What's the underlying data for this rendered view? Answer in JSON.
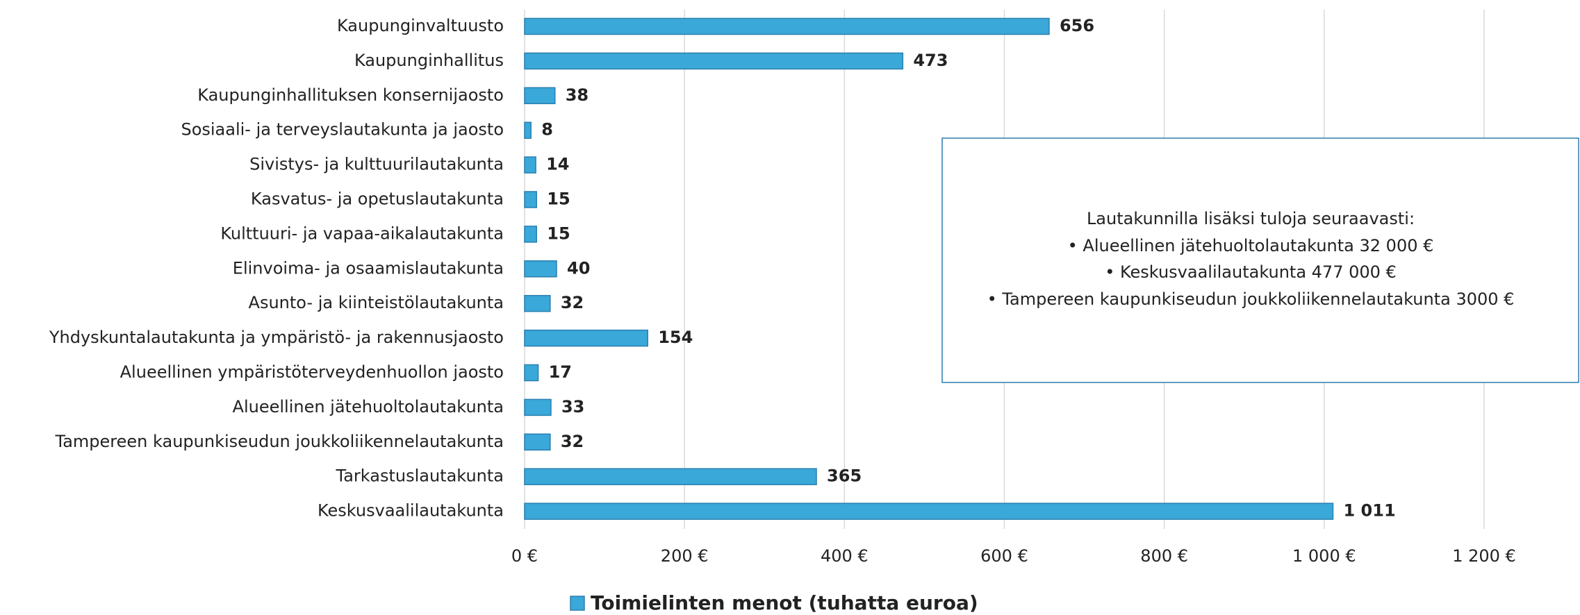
{
  "chart_data": {
    "type": "bar",
    "orientation": "horizontal",
    "categories": [
      "Kaupunginvaltuusto",
      "Kaupunginhallitus",
      "Kaupunginhallituksen konsernijaosto",
      "Sosiaali- ja terveyslautakunta ja jaosto",
      "Sivistys- ja kulttuurilautakunta",
      "Kasvatus- ja opetuslautakunta",
      "Kulttuuri- ja vapaa-aikalautakunta",
      "Elinvoima- ja osaamislautakunta",
      "Asunto- ja kiinteistölautakunta",
      "Yhdyskuntalautakunta ja ympäristö- ja rakennusjaosto",
      "Alueellinen ympäristöterveydenhuollon jaosto",
      "Alueellinen jätehuoltolautakunta",
      "Tampereen kaupunkiseudun joukkoliikennelautakunta",
      "Tarkastuslautakunta",
      "Keskusvaalilautakunta"
    ],
    "series": [
      {
        "name": "Toimielinten menot (tuhatta euroa)",
        "color": "#3aa8d8",
        "values": [
          656,
          473,
          38,
          8,
          14,
          15,
          15,
          40,
          32,
          154,
          17,
          33,
          32,
          365,
          1011
        ],
        "value_labels": [
          "656",
          "473",
          "38",
          "8",
          "14",
          "15",
          "15",
          "40",
          "32",
          "154",
          "17",
          "33",
          "32",
          "365",
          "1 011"
        ]
      }
    ],
    "xlim": [
      0,
      1200
    ],
    "xticks": [
      {
        "value": 0,
        "label": "0 €"
      },
      {
        "value": 200,
        "label": "200 €"
      },
      {
        "value": 400,
        "label": "400 €"
      },
      {
        "value": 600,
        "label": "600 €"
      },
      {
        "value": 800,
        "label": "800 €"
      },
      {
        "value": 1000,
        "label": "1 000 €"
      },
      {
        "value": 1200,
        "label": "1 200 €"
      }
    ],
    "grid": true,
    "legend": "bottom",
    "annotation": {
      "title": "Lautakunnilla lisäksi tuloja seuraavasti:",
      "items": [
        "Alueellinen jätehuoltolautakunta 32 000 €",
        "Keskusvaalilautakunta 477 000 €",
        "Tampereen kaupunkiseudun joukkoliikennelautakunta 3000 €"
      ]
    }
  }
}
